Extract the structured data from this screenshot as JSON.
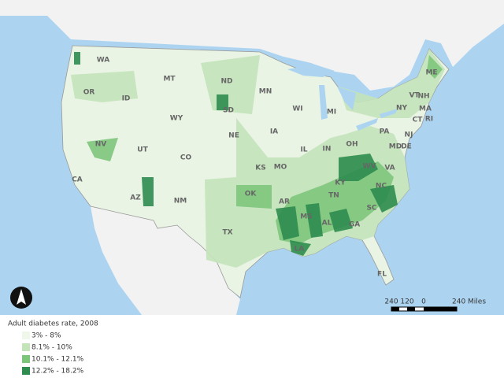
{
  "legend": {
    "title": "Adult diabetes rate, 2008",
    "items": [
      {
        "label": "3% - 8%",
        "color": "#eef7ea"
      },
      {
        "label": "8.1% - 10%",
        "color": "#c3e3b9"
      },
      {
        "label": "10.1% - 12.1%",
        "color": "#7dc57b"
      },
      {
        "label": "12.2% - 18.2%",
        "color": "#2e8c4f"
      }
    ]
  },
  "states": [
    "WA",
    "OR",
    "ID",
    "MT",
    "WY",
    "NV",
    "UT",
    "CO",
    "CA",
    "AZ",
    "NM",
    "ND",
    "SD",
    "NE",
    "KS",
    "OK",
    "TX",
    "MN",
    "IA",
    "MO",
    "AR",
    "LA",
    "WI",
    "IL",
    "MS",
    "MI",
    "IN",
    "KY",
    "TN",
    "AL",
    "GA",
    "FL",
    "OH",
    "WV",
    "VA",
    "NC",
    "SC",
    "PA",
    "NY",
    "ME",
    "VT",
    "NH",
    "MA",
    "CT",
    "RI",
    "NJ",
    "DE",
    "MD"
  ],
  "scale": {
    "labels": [
      "240",
      "120",
      "0",
      "240 Miles"
    ]
  }
}
